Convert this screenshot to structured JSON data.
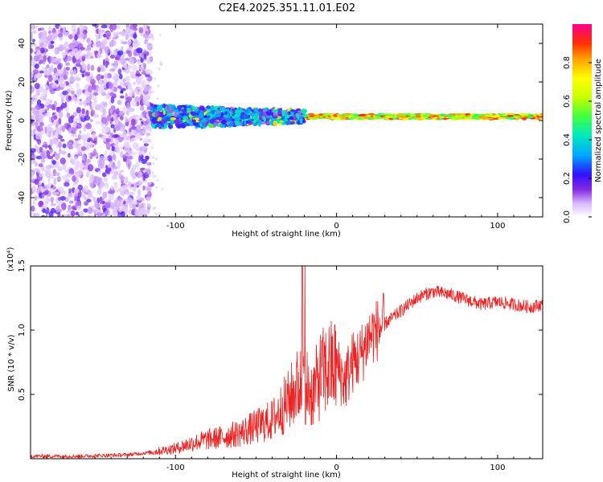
{
  "title": "C2E4.2025.351.11.01.E02",
  "chart_data": [
    {
      "type": "heatmap",
      "title": "C2E4.2025.351.11.01.E02",
      "xlabel": "Height of straight line (km)",
      "ylabel": "Frequency (Hz)",
      "xlim": [
        -190,
        128
      ],
      "ylim": [
        -50,
        50
      ],
      "xticks": [
        -100,
        0,
        100
      ],
      "xtick_labels": [
        "-100",
        "0",
        "100"
      ],
      "yticks": [
        -40,
        -20,
        0,
        20,
        40
      ],
      "ytick_labels": [
        "-40",
        "-20",
        "0",
        "20",
        "40"
      ],
      "colorbar": {
        "label": "Normalized spectral amplitude",
        "range": [
          0,
          1
        ],
        "ticks": [
          0.0,
          0.2,
          0.4,
          0.6,
          0.8
        ],
        "tick_labels": [
          "0.0",
          "0.2",
          "0.4",
          "0.6",
          "0.8"
        ]
      },
      "zones": [
        {
          "x_range": [
            -190,
            -115
          ],
          "freq_range": [
            -50,
            50
          ],
          "amplitude": "low, broadband noise"
        },
        {
          "x_range": [
            -115,
            -20
          ],
          "freq_center": 2,
          "freq_spread": 6,
          "amplitude": "medium-high patches"
        },
        {
          "x_range": [
            -20,
            128
          ],
          "freq_center": 2,
          "freq_spread": 2,
          "amplitude": "high, narrow line"
        }
      ]
    },
    {
      "type": "line",
      "xlabel": "Height of straight line (km)",
      "ylabel": "SNR (10 * v/v)",
      "y_multiplier": "(x10⁴)",
      "xlim": [
        -190,
        128
      ],
      "ylim": [
        0,
        1.5
      ],
      "xticks": [
        -100,
        0,
        100
      ],
      "xtick_labels": [
        "-100",
        "0",
        "100"
      ],
      "yticks": [
        0.5,
        1.0,
        1.5
      ],
      "ytick_labels": [
        "0.5",
        "1.0",
        "1.5"
      ],
      "series": [
        {
          "name": "SNR",
          "color": "#ee2222",
          "x": [
            -190,
            -160,
            -130,
            -115,
            -100,
            -90,
            -80,
            -70,
            -60,
            -50,
            -40,
            -30,
            -25,
            -20,
            -15,
            -10,
            -5,
            0,
            5,
            10,
            15,
            20,
            25,
            30,
            35,
            40,
            45,
            50,
            55,
            60,
            70,
            80,
            90,
            100,
            110,
            120,
            128
          ],
          "values": [
            0.02,
            0.02,
            0.03,
            0.05,
            0.08,
            0.12,
            0.15,
            0.17,
            0.2,
            0.25,
            0.3,
            0.45,
            0.55,
            0.6,
            0.5,
            0.65,
            0.7,
            0.72,
            0.6,
            0.75,
            0.8,
            0.95,
            1.0,
            1.05,
            1.1,
            1.15,
            1.2,
            1.25,
            1.28,
            1.3,
            1.28,
            1.24,
            1.2,
            1.22,
            1.2,
            1.18,
            1.2
          ]
        }
      ]
    }
  ],
  "colors": {
    "line": "#ee2222",
    "frame": "#000000",
    "background": "#ffffff"
  }
}
